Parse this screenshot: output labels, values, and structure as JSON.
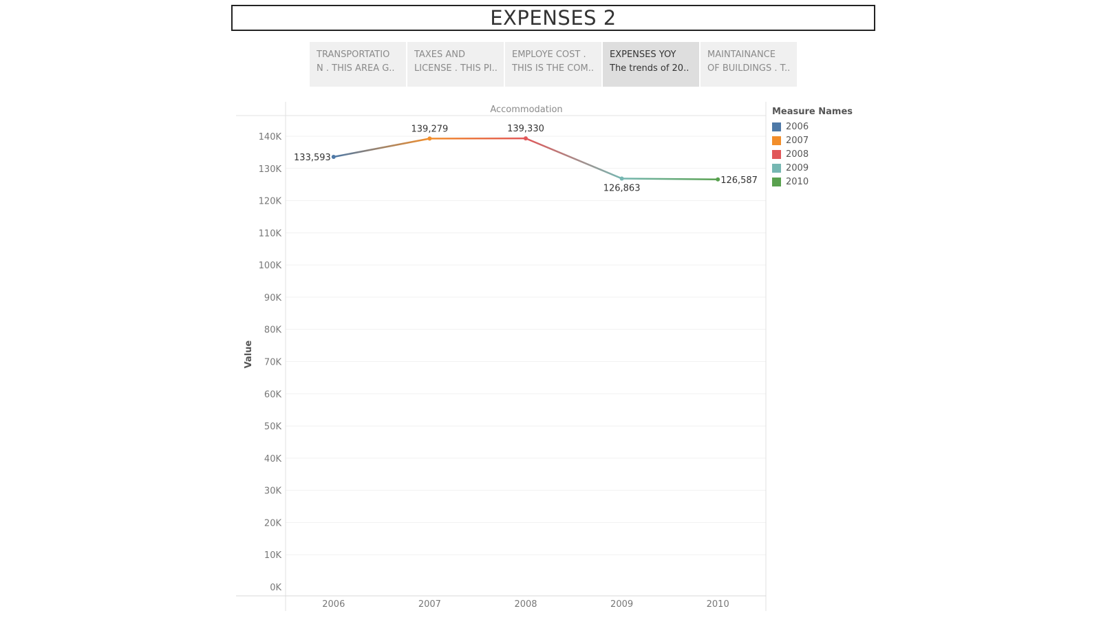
{
  "title": "EXPENSES 2",
  "tabs": [
    {
      "line1": "TRANSPORTATIO",
      "line2": "N . THIS AREA G..",
      "active": false
    },
    {
      "line1": "TAXES AND",
      "line2": "LICENSE . THIS PI..",
      "active": false
    },
    {
      "line1": "EMPLOYE COST .",
      "line2": "THIS IS THE COM..",
      "active": false
    },
    {
      "line1": "EXPENSES YOY",
      "line2": "The trends of 20..",
      "active": true
    },
    {
      "line1": "MAINTAINANCE",
      "line2": "OF BUILDINGS . T..",
      "active": false
    }
  ],
  "legend": {
    "title": "Measure Names",
    "items": [
      {
        "label": "2006",
        "color": "#4e79a7"
      },
      {
        "label": "2007",
        "color": "#f28e2b"
      },
      {
        "label": "2008",
        "color": "#e15759"
      },
      {
        "label": "2009",
        "color": "#76b7b2"
      },
      {
        "label": "2010",
        "color": "#59a14f"
      }
    ]
  },
  "chart_data": {
    "type": "line",
    "title": "Accommodation",
    "xlabel": "",
    "ylabel": "Value",
    "categories": [
      "2006",
      "2007",
      "2008",
      "2009",
      "2010"
    ],
    "values": [
      133593,
      139279,
      139330,
      126863,
      126587
    ],
    "data_labels": [
      "133,593",
      "139,279",
      "139,330",
      "126,863",
      "126,587"
    ],
    "point_colors": [
      "#4e79a7",
      "#f28e2b",
      "#e15759",
      "#76b7b2",
      "#59a14f"
    ],
    "ylim": [
      0,
      145000
    ],
    "yticks": [
      0,
      10000,
      20000,
      30000,
      40000,
      50000,
      60000,
      70000,
      80000,
      90000,
      100000,
      110000,
      120000,
      130000,
      140000
    ],
    "ytick_labels": [
      "0K",
      "10K",
      "20K",
      "30K",
      "40K",
      "50K",
      "60K",
      "70K",
      "80K",
      "90K",
      "100K",
      "110K",
      "120K",
      "130K",
      "140K"
    ],
    "grid": true,
    "legend_position": "right"
  }
}
